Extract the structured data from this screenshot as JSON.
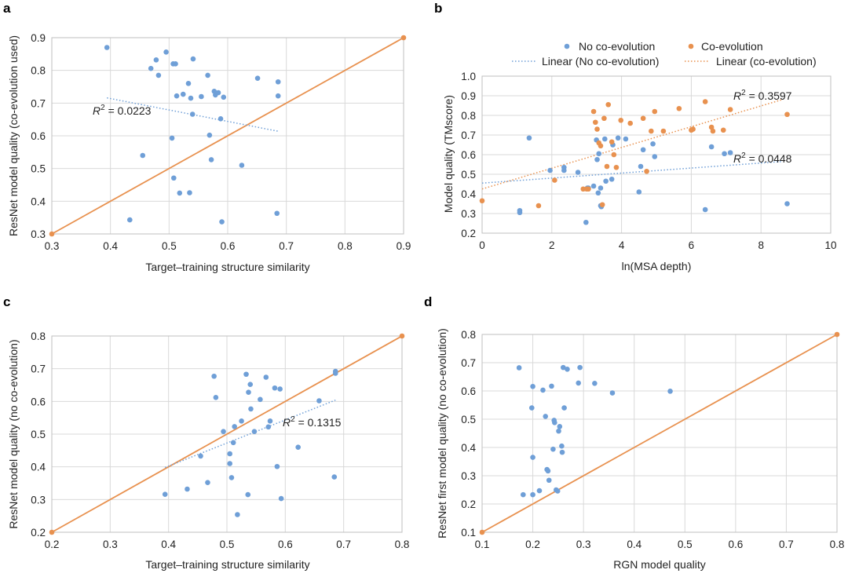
{
  "colors": {
    "blue": "#6f9fd7",
    "orange": "#e8914f",
    "grid": "#d9d9d9"
  },
  "chart_data": [
    {
      "panel": "a",
      "type": "scatter",
      "xlabel": "Target–training structure similarity",
      "ylabel": "ResNet model quality (co-evolution used)",
      "xlim": [
        0.3,
        0.9
      ],
      "ylim": [
        0.3,
        0.9
      ],
      "xticks": [
        0.3,
        0.4,
        0.5,
        0.6,
        0.7,
        0.8,
        0.9
      ],
      "yticks": [
        0.3,
        0.4,
        0.5,
        0.6,
        0.7,
        0.8,
        0.9
      ],
      "tick_labels_x": [
        "0.3",
        "0.4",
        "0.5",
        "0.6",
        "0.7",
        "0.8",
        "0.9"
      ],
      "tick_labels_y": [
        "0.3",
        "0.4",
        "0.5",
        "0.6",
        "0.7",
        "0.8",
        "0.9"
      ],
      "series": [
        {
          "name": "points",
          "color": "blue",
          "x": [
            0.394,
            0.433,
            0.455,
            0.469,
            0.478,
            0.482,
            0.495,
            0.505,
            0.507,
            0.508,
            0.511,
            0.513,
            0.518,
            0.524,
            0.533,
            0.535,
            0.537,
            0.54,
            0.541,
            0.555,
            0.566,
            0.569,
            0.572,
            0.577,
            0.579,
            0.584,
            0.588,
            0.59,
            0.593,
            0.624,
            0.651,
            0.684,
            0.686,
            0.686
          ],
          "y": [
            0.87,
            0.343,
            0.54,
            0.806,
            0.832,
            0.785,
            0.856,
            0.593,
            0.82,
            0.471,
            0.82,
            0.722,
            0.425,
            0.727,
            0.76,
            0.426,
            0.715,
            0.666,
            0.835,
            0.72,
            0.785,
            0.602,
            0.527,
            0.736,
            0.725,
            0.732,
            0.652,
            0.337,
            0.718,
            0.51,
            0.776,
            0.363,
            0.765,
            0.722
          ]
        }
      ],
      "lines": [
        {
          "name": "identity",
          "color": "orange",
          "style": "solid",
          "x": [
            0.3,
            0.9
          ],
          "y": [
            0.3,
            0.9
          ],
          "end_markers": true
        },
        {
          "name": "trend",
          "color": "blue",
          "style": "dotted",
          "x": [
            0.394,
            0.686
          ],
          "y": [
            0.716,
            0.614
          ]
        }
      ],
      "annotations": [
        {
          "r_label": "R",
          "superscript": "2",
          "value_text": " = 0.0223"
        }
      ]
    },
    {
      "panel": "b",
      "type": "scatter",
      "xlabel": "ln(MSA depth)",
      "ylabel": "Model quality (TMscore)",
      "xlim": [
        0,
        10
      ],
      "ylim": [
        0.2,
        1.0
      ],
      "xticks": [
        0,
        2,
        4,
        6,
        8,
        10
      ],
      "yticks": [
        0.2,
        0.3,
        0.4,
        0.5,
        0.6,
        0.7,
        0.8,
        0.9,
        1.0
      ],
      "tick_labels_x": [
        "0",
        "2",
        "4",
        "6",
        "8",
        "10"
      ],
      "tick_labels_y": [
        "0.2",
        "0.3",
        "0.4",
        "0.5",
        "0.6",
        "0.7",
        "0.8",
        "0.9",
        "1.0"
      ],
      "legend": [
        {
          "label": "No co-evolution",
          "kind": "marker",
          "color": "blue"
        },
        {
          "label": "Co-evolution",
          "kind": "marker",
          "color": "orange"
        },
        {
          "label": "Linear (No co-evolution)",
          "kind": "dotted",
          "color": "blue"
        },
        {
          "label": "Linear (co-evolution)",
          "kind": "dotted",
          "color": "orange"
        }
      ],
      "series": [
        {
          "name": "No co-evolution",
          "color": "blue",
          "x": [
            1.08,
            1.08,
            1.35,
            1.95,
            2.35,
            2.35,
            2.75,
            2.98,
            3.02,
            3.05,
            3.2,
            3.28,
            3.3,
            3.33,
            3.35,
            3.4,
            3.4,
            3.42,
            3.52,
            3.55,
            3.72,
            3.75,
            3.9,
            4.12,
            4.5,
            4.55,
            4.62,
            4.9,
            4.95,
            6.4,
            6.58,
            6.95,
            7.12,
            8.75
          ],
          "y": [
            0.315,
            0.305,
            0.685,
            0.52,
            0.535,
            0.52,
            0.51,
            0.255,
            0.43,
            0.43,
            0.44,
            0.675,
            0.575,
            0.405,
            0.605,
            0.43,
            0.34,
            0.335,
            0.68,
            0.465,
            0.475,
            0.65,
            0.685,
            0.68,
            0.41,
            0.54,
            0.625,
            0.655,
            0.59,
            0.32,
            0.64,
            0.605,
            0.61,
            0.35
          ]
        },
        {
          "name": "Co-evolution",
          "color": "orange",
          "x": [
            0.0,
            1.62,
            2.08,
            2.9,
            3.0,
            3.05,
            3.2,
            3.25,
            3.3,
            3.35,
            3.4,
            3.45,
            3.5,
            3.58,
            3.62,
            3.72,
            3.78,
            3.85,
            3.98,
            4.25,
            4.62,
            4.72,
            4.85,
            4.95,
            5.2,
            5.65,
            6.0,
            6.05,
            6.4,
            6.58,
            6.62,
            6.92,
            7.12,
            8.75
          ],
          "y": [
            0.365,
            0.34,
            0.47,
            0.425,
            0.425,
            0.425,
            0.82,
            0.765,
            0.73,
            0.66,
            0.645,
            0.345,
            0.785,
            0.54,
            0.855,
            0.665,
            0.6,
            0.535,
            0.775,
            0.76,
            0.785,
            0.515,
            0.72,
            0.82,
            0.72,
            0.835,
            0.725,
            0.73,
            0.87,
            0.74,
            0.72,
            0.725,
            0.83,
            0.805
          ]
        }
      ],
      "lines": [
        {
          "name": "Linear (No co-evolution)",
          "color": "blue",
          "style": "dotted",
          "x": [
            0,
            8.6
          ],
          "y": [
            0.455,
            0.565
          ]
        },
        {
          "name": "Linear (co-evolution)",
          "color": "orange",
          "style": "dotted",
          "x": [
            0,
            8.6
          ],
          "y": [
            0.425,
            0.88
          ]
        }
      ],
      "annotations": [
        {
          "r_label": "R",
          "superscript": "2",
          "value_text": " = 0.3597"
        },
        {
          "r_label": "R",
          "superscript": "2",
          "value_text": " = 0.0448"
        }
      ]
    },
    {
      "panel": "c",
      "type": "scatter",
      "xlabel": "Target–training structure similarity",
      "ylabel": "ResNet model quality (no co-evolution)",
      "xlim": [
        0.2,
        0.8
      ],
      "ylim": [
        0.2,
        0.8
      ],
      "xticks": [
        0.2,
        0.3,
        0.4,
        0.5,
        0.6,
        0.7,
        0.8
      ],
      "yticks": [
        0.2,
        0.3,
        0.4,
        0.5,
        0.6,
        0.7,
        0.8
      ],
      "tick_labels_x": [
        "0.2",
        "0.3",
        "0.4",
        "0.5",
        "0.6",
        "0.7",
        "0.8"
      ],
      "tick_labels_y": [
        "0.2",
        "0.3",
        "0.4",
        "0.5",
        "0.6",
        "0.7",
        "0.8"
      ],
      "series": [
        {
          "name": "points",
          "color": "blue",
          "x": [
            0.394,
            0.432,
            0.455,
            0.467,
            0.478,
            0.481,
            0.494,
            0.505,
            0.505,
            0.508,
            0.511,
            0.513,
            0.518,
            0.525,
            0.533,
            0.536,
            0.537,
            0.54,
            0.541,
            0.547,
            0.557,
            0.567,
            0.571,
            0.574,
            0.582,
            0.586,
            0.591,
            0.593,
            0.622,
            0.658,
            0.684,
            0.686,
            0.686
          ],
          "y": [
            0.316,
            0.332,
            0.433,
            0.352,
            0.677,
            0.612,
            0.508,
            0.44,
            0.41,
            0.367,
            0.474,
            0.523,
            0.254,
            0.54,
            0.683,
            0.315,
            0.628,
            0.652,
            0.577,
            0.508,
            0.606,
            0.674,
            0.522,
            0.54,
            0.641,
            0.401,
            0.638,
            0.303,
            0.46,
            0.602,
            0.369,
            0.692,
            0.686
          ]
        }
      ],
      "lines": [
        {
          "name": "identity",
          "color": "orange",
          "style": "solid",
          "x": [
            0.2,
            0.8
          ],
          "y": [
            0.2,
            0.8
          ],
          "end_markers": true
        },
        {
          "name": "trend",
          "color": "blue",
          "style": "dotted",
          "x": [
            0.394,
            0.686
          ],
          "y": [
            0.398,
            0.604
          ]
        }
      ],
      "annotations": [
        {
          "r_label": "R",
          "superscript": "2",
          "value_text": " = 0.1315"
        }
      ]
    },
    {
      "panel": "d",
      "type": "scatter",
      "xlabel": "RGN model quality",
      "ylabel": "ResNet first model quality (no co-evolution)",
      "xlim": [
        0.1,
        0.8
      ],
      "ylim": [
        0.1,
        0.8
      ],
      "xticks": [
        0.1,
        0.2,
        0.3,
        0.4,
        0.5,
        0.6,
        0.7,
        0.8
      ],
      "yticks": [
        0.1,
        0.2,
        0.3,
        0.4,
        0.5,
        0.6,
        0.7,
        0.8
      ],
      "tick_labels_x": [
        "0.1",
        "0.2",
        "0.3",
        "0.4",
        "0.5",
        "0.6",
        "0.7",
        "0.8"
      ],
      "tick_labels_y": [
        "0.1",
        "0.2",
        "0.3",
        "0.4",
        "0.5",
        "0.6",
        "0.7",
        "0.8"
      ],
      "series": [
        {
          "name": "points",
          "color": "blue",
          "x": [
            0.173,
            0.181,
            0.198,
            0.2,
            0.2,
            0.2,
            0.213,
            0.22,
            0.225,
            0.228,
            0.23,
            0.232,
            0.237,
            0.24,
            0.242,
            0.243,
            0.246,
            0.249,
            0.251,
            0.253,
            0.257,
            0.258,
            0.26,
            0.262,
            0.268,
            0.29,
            0.293,
            0.322,
            0.357,
            0.471
          ],
          "y": [
            0.682,
            0.233,
            0.54,
            0.616,
            0.365,
            0.233,
            0.247,
            0.603,
            0.51,
            0.322,
            0.317,
            0.284,
            0.617,
            0.394,
            0.496,
            0.488,
            0.25,
            0.246,
            0.458,
            0.474,
            0.405,
            0.383,
            0.683,
            0.54,
            0.677,
            0.628,
            0.683,
            0.627,
            0.593,
            0.599
          ]
        }
      ],
      "lines": [
        {
          "name": "identity",
          "color": "orange",
          "style": "solid",
          "x": [
            0.1,
            0.8
          ],
          "y": [
            0.1,
            0.8
          ],
          "end_markers": true
        }
      ],
      "annotations": []
    }
  ]
}
